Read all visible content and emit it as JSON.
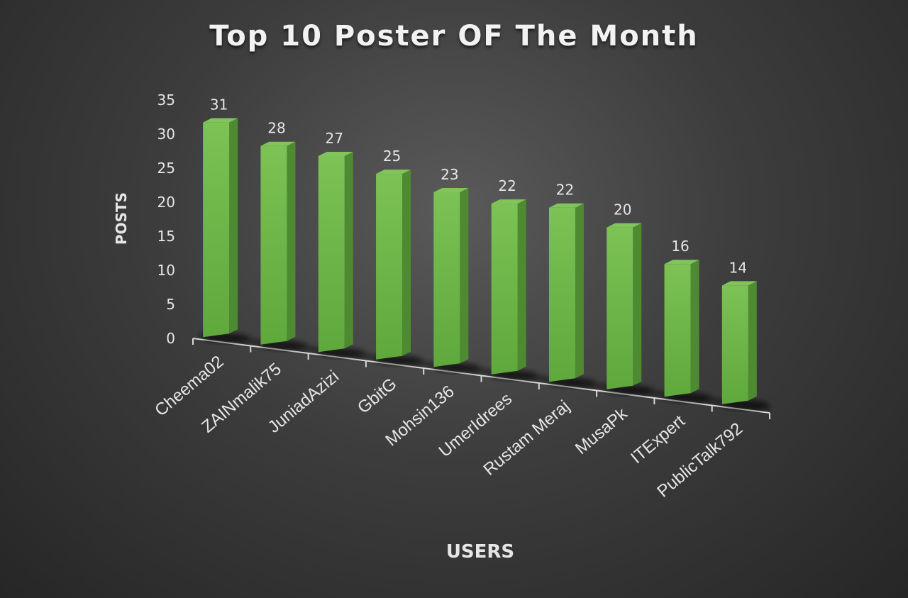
{
  "chart_data": {
    "type": "bar",
    "title": "Top 10 Poster OF The Month",
    "xlabel": "USERS",
    "ylabel": "POSTS",
    "categories": [
      "Cheema02",
      "ZAINmalik75",
      "JuniadAzizi",
      "GbitG",
      "Mohsin136",
      "UmerIdrees",
      "Rustam Meraj",
      "MusaPk",
      "ITExpert",
      "PublicTalk792"
    ],
    "values": [
      31,
      28,
      27,
      25,
      23,
      22,
      22,
      20,
      16,
      14
    ],
    "ylim": [
      0,
      35
    ],
    "yticks": [
      0,
      5,
      10,
      15,
      20,
      25,
      30,
      35
    ],
    "grid": false,
    "legend": "none",
    "style": "3d-column",
    "colors": {
      "bar_front": "#6fb84a",
      "bar_side": "#4d8a31",
      "bar_top": "#82c45c",
      "background": "#3d3d3d",
      "text": "#e6e6e6"
    }
  }
}
